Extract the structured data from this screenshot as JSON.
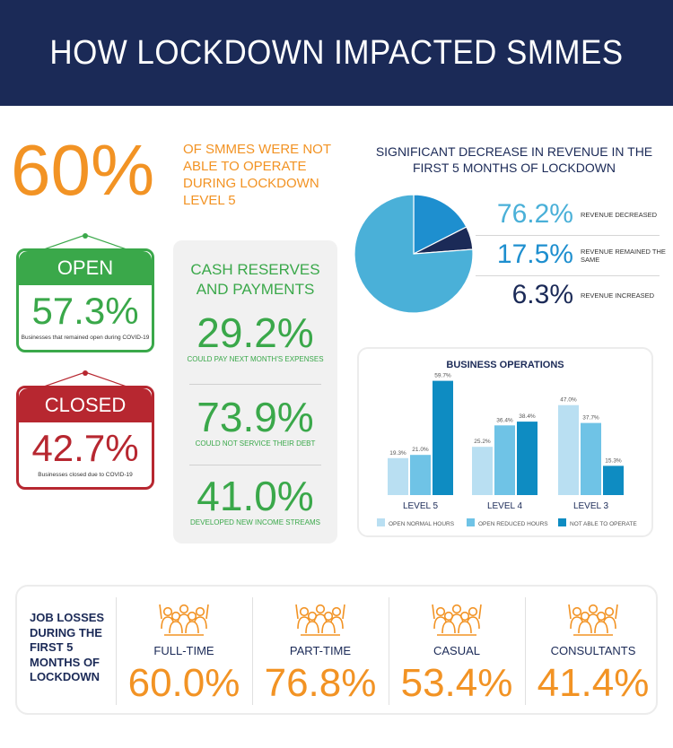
{
  "header": {
    "title": "HOW LOCKDOWN IMPACTED SMMES"
  },
  "intro": {
    "value": "60%",
    "text": "OF SMMES WERE NOT ABLE TO OPERATE DURING LOCKDOWN LEVEL 5"
  },
  "open_sign": {
    "label": "OPEN",
    "value": "57.3%",
    "note": "Businesses that remained open during COVID-19"
  },
  "closed_sign": {
    "label": "CLOSED",
    "value": "42.7%",
    "note": "Businesses closed due to COVID-19"
  },
  "cash": {
    "title": "CASH RESERVES AND PAYMENTS",
    "stats": [
      {
        "value": "29.2%",
        "label": "COULD PAY NEXT MONTH'S EXPENSES"
      },
      {
        "value": "73.9%",
        "label": "COULD NOT SERVICE THEIR DEBT"
      },
      {
        "value": "41.0%",
        "label": "DEVELOPED NEW INCOME STREAMS"
      }
    ]
  },
  "revenue": {
    "title": "SIGNIFICANT DECREASE IN REVENUE IN THE FIRST 5 MONTHS OF LOCKDOWN",
    "rows": [
      {
        "value": "76.2%",
        "label": "REVENUE DECREASED"
      },
      {
        "value": "17.5%",
        "label": "REVENUE REMAINED THE SAME"
      },
      {
        "value": "6.3%",
        "label": "REVENUE INCREASED"
      }
    ]
  },
  "chart_data": [
    {
      "type": "pie",
      "title": "SIGNIFICANT DECREASE IN REVENUE IN THE FIRST 5 MONTHS OF LOCKDOWN",
      "categories": [
        "REVENUE DECREASED",
        "REVENUE REMAINED THE SAME",
        "REVENUE INCREASED"
      ],
      "values": [
        76.2,
        17.5,
        6.3
      ],
      "colors": [
        "#4ab0d8",
        "#1e8fcf",
        "#1b2a57"
      ]
    },
    {
      "type": "bar",
      "title": "BUSINESS OPERATIONS",
      "categories": [
        "LEVEL 5",
        "LEVEL 4",
        "LEVEL 3"
      ],
      "series": [
        {
          "name": "OPEN NORMAL HOURS",
          "values": [
            19.3,
            25.2,
            47.0
          ],
          "labels": [
            "19.3%",
            "25.2%",
            "47.0%"
          ],
          "color": "#b9dff2"
        },
        {
          "name": "OPEN REDUCED HOURS",
          "values": [
            21.0,
            36.4,
            37.7
          ],
          "labels": [
            "21.0%",
            "36.4%",
            "37.7%"
          ],
          "color": "#6fc3e6"
        },
        {
          "name": "NOT ABLE TO OPERATE",
          "values": [
            59.7,
            38.4,
            15.3
          ],
          "labels": [
            "59.7%",
            "38.4%",
            "15.3%"
          ],
          "color": "#0e8cc2"
        }
      ],
      "ylim": [
        0,
        60
      ],
      "legend": "bottom",
      "grid": false
    }
  ],
  "jobs": {
    "label": "JOB LOSSES DURING THE FIRST 5 MONTHS OF LOCKDOWN",
    "items": [
      {
        "name": "FULL-TIME",
        "value": "60.0%"
      },
      {
        "name": "PART-TIME",
        "value": "76.8%"
      },
      {
        "name": "CASUAL",
        "value": "53.4%"
      },
      {
        "name": "CONSULTANTS",
        "value": "41.4%"
      }
    ],
    "icon": "people-group-icon"
  }
}
